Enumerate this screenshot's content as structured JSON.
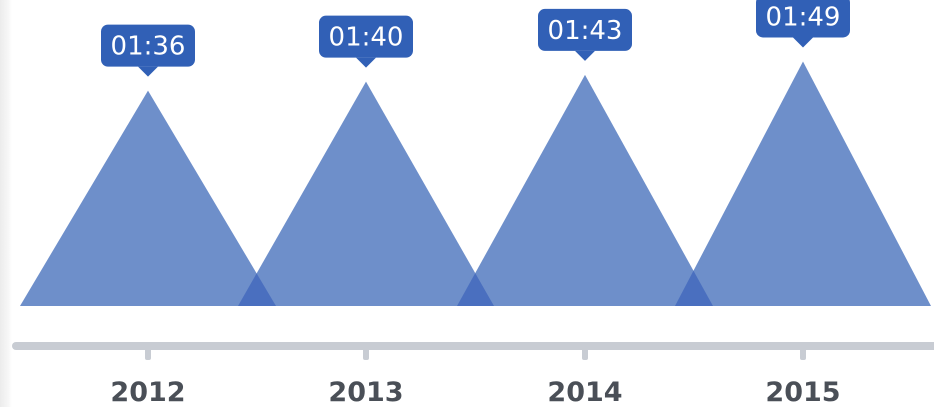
{
  "chart_data": {
    "type": "area",
    "categories": [
      "2012",
      "2013",
      "2014",
      "2015"
    ],
    "values": [
      96,
      100,
      103,
      109
    ],
    "labels": [
      "01:36",
      "01:40",
      "01:43",
      "01:49"
    ],
    "title": "",
    "xlabel": "",
    "ylabel": "",
    "ylim": [
      0,
      115
    ],
    "grid": false,
    "legend": "none",
    "colors": {
      "mark": "#6e8fca",
      "overlap": "#4a6fbf",
      "badge": "#3160b6",
      "axis": "#c8ccd3",
      "tick_text": "#4a4f57"
    }
  }
}
